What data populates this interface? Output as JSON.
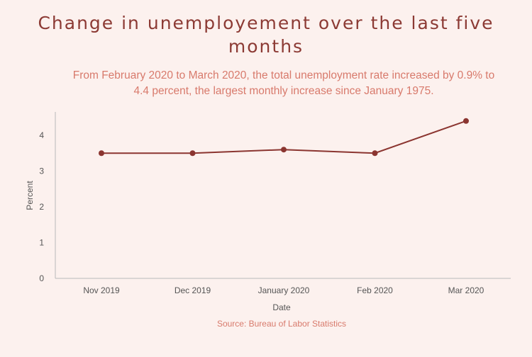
{
  "chart_data": {
    "type": "line",
    "title": "Change in unemployement over the last five months",
    "subtitle": "From February 2020 to March 2020, the total unemployment rate increased by 0.9% to 4.4 percent, the largest monthly increase since January 1975.",
    "categories": [
      "Nov 2019",
      "Dec 2019",
      "January 2020",
      "Feb 2020",
      "Mar 2020"
    ],
    "series": [
      {
        "values": [
          3.5,
          3.5,
          3.6,
          3.5,
          4.4
        ]
      }
    ],
    "xlabel": "Date",
    "ylabel": "Percent",
    "ylim": [
      0,
      4.6
    ],
    "yticks": [
      "0",
      "1",
      "2",
      "3",
      "4"
    ],
    "source": "Source: Bureau of Labor Statistics",
    "grid": false,
    "colors": {
      "line": "#8b3530",
      "title": "#8c3a34",
      "subtitle": "#d87a6c",
      "axis": "#b9b9b9"
    }
  }
}
